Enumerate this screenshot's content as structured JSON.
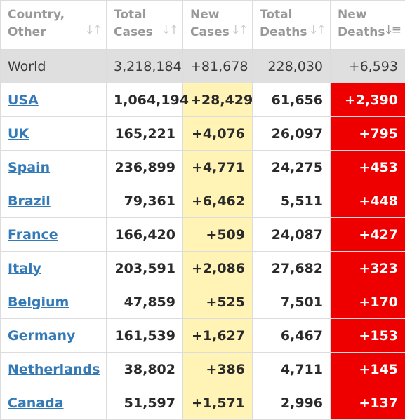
{
  "headers": [
    {
      "line1": "Country,",
      "line2": "Other",
      "sort_icon": "sort-icon",
      "active": false
    },
    {
      "line1": "Total",
      "line2": "Cases",
      "sort_icon": "sort-icon",
      "active": false
    },
    {
      "line1": "New",
      "line2": "Cases",
      "sort_icon": "sort-icon",
      "active": false
    },
    {
      "line1": "Total",
      "line2": "Deaths",
      "sort_icon": "sort-icon",
      "active": false
    },
    {
      "line1": "New",
      "line2": "Deaths",
      "sort_icon": "sort-desc-icon",
      "active": true
    }
  ],
  "world": {
    "country": "World",
    "total_cases": "3,218,184",
    "new_cases": "+81,678",
    "total_deaths": "228,030",
    "new_deaths": "+6,593"
  },
  "rows": [
    {
      "country": "USA",
      "total_cases": "1,064,194",
      "new_cases": "+28,429",
      "total_deaths": "61,656",
      "new_deaths": "+2,390"
    },
    {
      "country": "UK",
      "total_cases": "165,221",
      "new_cases": "+4,076",
      "total_deaths": "26,097",
      "new_deaths": "+795"
    },
    {
      "country": "Spain",
      "total_cases": "236,899",
      "new_cases": "+4,771",
      "total_deaths": "24,275",
      "new_deaths": "+453"
    },
    {
      "country": "Brazil",
      "total_cases": "79,361",
      "new_cases": "+6,462",
      "total_deaths": "5,511",
      "new_deaths": "+448"
    },
    {
      "country": "France",
      "total_cases": "166,420",
      "new_cases": "+509",
      "total_deaths": "24,087",
      "new_deaths": "+427"
    },
    {
      "country": "Italy",
      "total_cases": "203,591",
      "new_cases": "+2,086",
      "total_deaths": "27,682",
      "new_deaths": "+323"
    },
    {
      "country": "Belgium",
      "total_cases": "47,859",
      "new_cases": "+525",
      "total_deaths": "7,501",
      "new_deaths": "+170"
    },
    {
      "country": "Germany",
      "total_cases": "161,539",
      "new_cases": "+1,627",
      "total_deaths": "6,467",
      "new_deaths": "+153"
    },
    {
      "country": "Netherlands",
      "total_cases": "38,802",
      "new_cases": "+386",
      "total_deaths": "4,711",
      "new_deaths": "+145"
    },
    {
      "country": "Canada",
      "total_cases": "51,597",
      "new_cases": "+1,571",
      "total_deaths": "2,996",
      "new_deaths": "+137"
    }
  ],
  "colors": {
    "new_cases_bg": "#fff3b5",
    "new_deaths_bg": "#ee0000",
    "world_bg": "#dfdfdf",
    "link": "#337ab7"
  }
}
